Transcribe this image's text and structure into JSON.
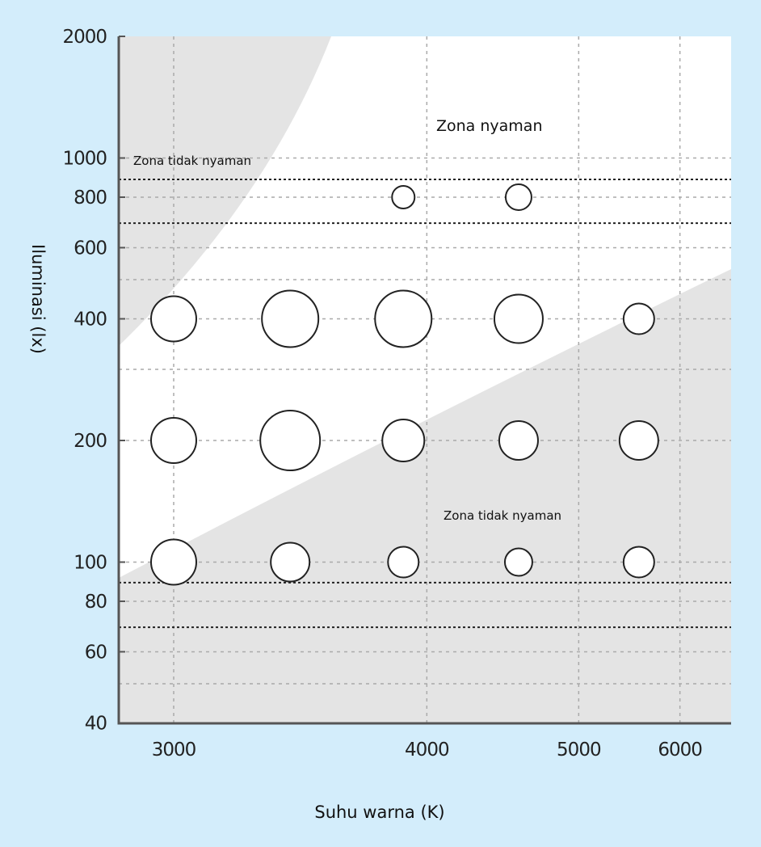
{
  "chart_data": {
    "type": "scatter",
    "title": "",
    "xlabel": "Suhu warna (K)",
    "ylabel": "Iluminasi (lx)",
    "x_scale": "reciprocal (mired)",
    "y_scale": "log",
    "xlim": [
      2850,
      6700
    ],
    "ylim": [
      40,
      2000
    ],
    "x_ticks": [
      3000,
      4000,
      5000,
      6000
    ],
    "x_tick_labels": [
      "3000",
      "4000",
      "5000",
      "6000"
    ],
    "y_ticks": [
      40,
      60,
      80,
      100,
      200,
      400,
      600,
      800,
      1000,
      2000
    ],
    "y_tick_labels": [
      "40",
      "60",
      "80",
      "100",
      "200",
      "400",
      "600",
      "800",
      "1000",
      "2000"
    ],
    "y_minor_grid": [
      50,
      300,
      500
    ],
    "reference_lines_lx": [
      690,
      885,
      69,
      89
    ],
    "grid": true,
    "annotations": [
      {
        "text": "Zona nyaman",
        "region": "middle band"
      },
      {
        "text": "Zona tidak nyaman",
        "region": "upper-left"
      },
      {
        "text": "Zona tidak nyaman",
        "region": "lower-right"
      }
    ],
    "points": [
      {
        "x": 3880,
        "y": 800,
        "size": 14
      },
      {
        "x": 4550,
        "y": 800,
        "size": 16
      },
      {
        "x": 3000,
        "y": 400,
        "size": 28
      },
      {
        "x": 3390,
        "y": 400,
        "size": 35
      },
      {
        "x": 3880,
        "y": 400,
        "size": 35
      },
      {
        "x": 4550,
        "y": 400,
        "size": 30
      },
      {
        "x": 5550,
        "y": 400,
        "size": 19
      },
      {
        "x": 3000,
        "y": 200,
        "size": 28
      },
      {
        "x": 3390,
        "y": 200,
        "size": 37
      },
      {
        "x": 3880,
        "y": 200,
        "size": 26
      },
      {
        "x": 4550,
        "y": 200,
        "size": 24
      },
      {
        "x": 5550,
        "y": 200,
        "size": 24
      },
      {
        "x": 3000,
        "y": 100,
        "size": 28
      },
      {
        "x": 3390,
        "y": 100,
        "size": 24
      },
      {
        "x": 3880,
        "y": 100,
        "size": 19
      },
      {
        "x": 4550,
        "y": 100,
        "size": 17
      },
      {
        "x": 5550,
        "y": 100,
        "size": 19
      }
    ],
    "colors": {
      "background": "#d3edfb",
      "uncomfortable_zone": "#e4e4e4",
      "comfortable_zone": "#ffffff",
      "marker_stroke": "#222222"
    }
  }
}
